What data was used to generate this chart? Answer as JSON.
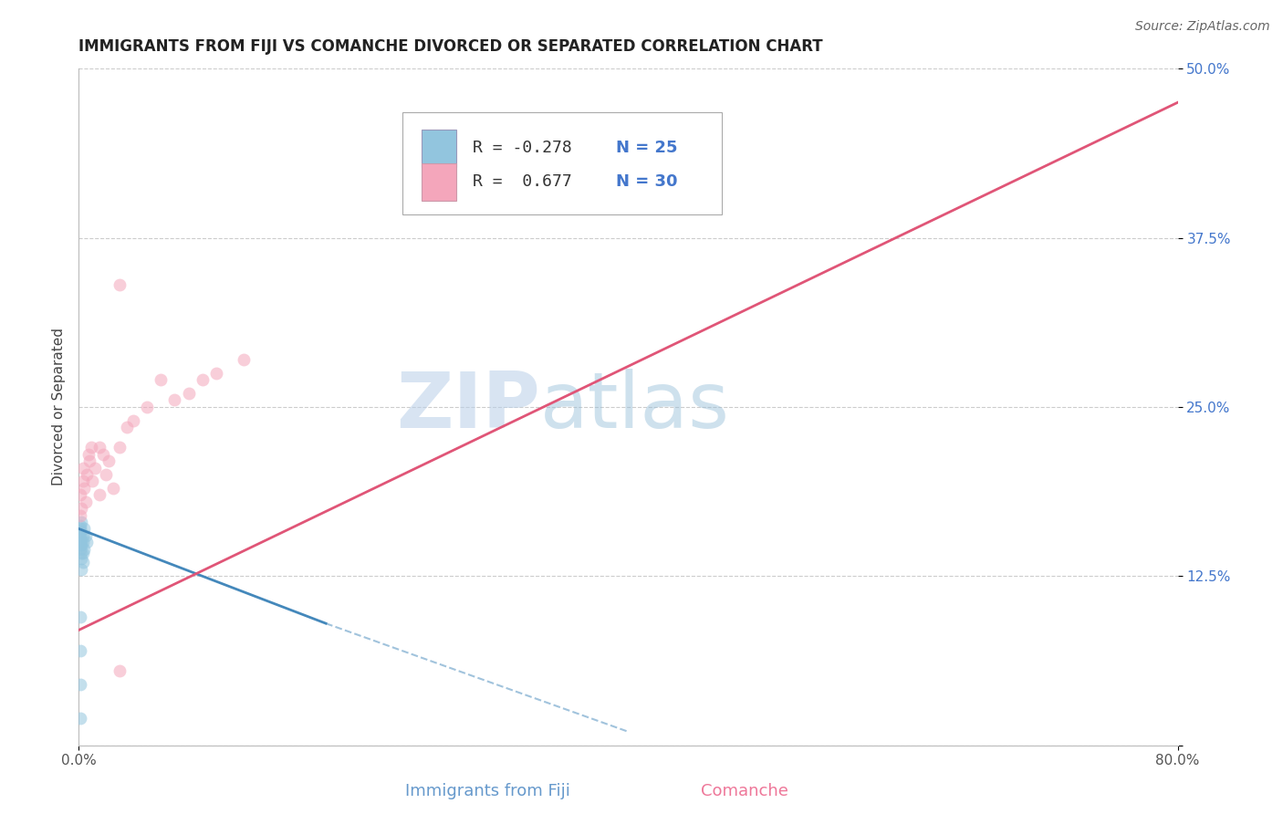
{
  "title": "IMMIGRANTS FROM FIJI VS COMANCHE DIVORCED OR SEPARATED CORRELATION CHART",
  "source_text": "Source: ZipAtlas.com",
  "ylabel": "Divorced or Separated",
  "xlim": [
    0,
    0.8
  ],
  "ylim": [
    0,
    0.5
  ],
  "xticks": [
    0.0,
    0.8
  ],
  "xtick_labels": [
    "0.0%",
    "80.0%"
  ],
  "yticks": [
    0.0,
    0.125,
    0.25,
    0.375,
    0.5
  ],
  "ytick_labels": [
    "",
    "12.5%",
    "25.0%",
    "37.5%",
    "50.0%"
  ],
  "grid_color": "#cccccc",
  "background_color": "#ffffff",
  "legend_r1_label": "R = -0.278",
  "legend_n1_label": "N = 25",
  "legend_r2_label": "R =  0.677",
  "legend_n2_label": "N = 30",
  "color_fiji": "#92c5de",
  "color_comanche": "#f4a6bb",
  "color_fiji_line": "#4488bb",
  "color_comanche_line": "#e05577",
  "watermark_zip": "ZIP",
  "watermark_atlas": "atlas",
  "legend_label_fiji": "Immigrants from Fiji",
  "legend_label_comanche": "Comanche",
  "fiji_scatter_x": [
    0.001,
    0.001,
    0.001,
    0.001,
    0.001,
    0.001,
    0.001,
    0.002,
    0.002,
    0.002,
    0.002,
    0.002,
    0.002,
    0.003,
    0.003,
    0.003,
    0.003,
    0.004,
    0.004,
    0.005,
    0.006,
    0.001,
    0.001,
    0.001,
    0.001
  ],
  "fiji_scatter_y": [
    0.155,
    0.16,
    0.162,
    0.158,
    0.152,
    0.148,
    0.145,
    0.165,
    0.15,
    0.148,
    0.142,
    0.138,
    0.13,
    0.155,
    0.15,
    0.142,
    0.135,
    0.16,
    0.145,
    0.155,
    0.15,
    0.095,
    0.07,
    0.045,
    0.02
  ],
  "comanche_scatter_x": [
    0.001,
    0.001,
    0.002,
    0.003,
    0.003,
    0.004,
    0.005,
    0.006,
    0.007,
    0.008,
    0.009,
    0.01,
    0.012,
    0.015,
    0.015,
    0.018,
    0.02,
    0.022,
    0.025,
    0.03,
    0.035,
    0.04,
    0.05,
    0.06,
    0.07,
    0.08,
    0.09,
    0.1,
    0.12,
    0.03
  ],
  "comanche_scatter_y": [
    0.17,
    0.185,
    0.175,
    0.195,
    0.205,
    0.19,
    0.18,
    0.2,
    0.215,
    0.21,
    0.22,
    0.195,
    0.205,
    0.22,
    0.185,
    0.215,
    0.2,
    0.21,
    0.19,
    0.22,
    0.235,
    0.24,
    0.25,
    0.27,
    0.255,
    0.26,
    0.27,
    0.275,
    0.285,
    0.055
  ],
  "comanche_outlier_x": [
    0.03
  ],
  "comanche_outlier_y": [
    0.34
  ],
  "fiji_trend_x0": 0.0,
  "fiji_trend_x1": 0.18,
  "fiji_trend_y0": 0.16,
  "fiji_trend_y1": 0.09,
  "fiji_trend_ext_x1": 0.4,
  "fiji_trend_ext_y1": 0.01,
  "comanche_trend_x0": 0.0,
  "comanche_trend_x1": 0.8,
  "comanche_trend_y0": 0.085,
  "comanche_trend_y1": 0.475,
  "marker_size": 100,
  "marker_alpha": 0.55,
  "title_fontsize": 12,
  "axis_label_fontsize": 11,
  "tick_fontsize": 11,
  "legend_fontsize": 13,
  "source_fontsize": 10
}
